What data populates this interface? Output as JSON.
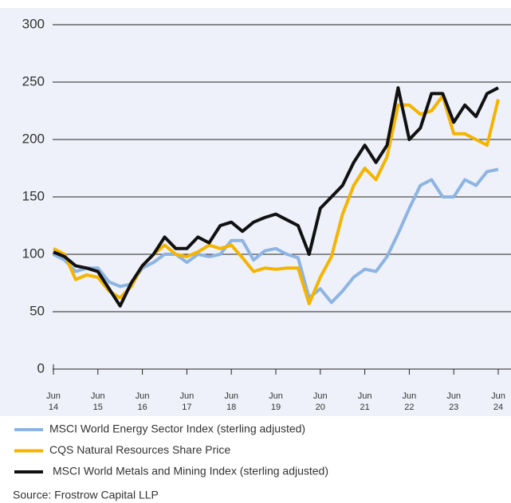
{
  "chart_data": {
    "type": "line",
    "x": [
      2014.5,
      2014.75,
      2015.0,
      2015.25,
      2015.5,
      2015.75,
      2016.0,
      2016.25,
      2016.5,
      2016.75,
      2017.0,
      2017.25,
      2017.5,
      2017.75,
      2018.0,
      2018.25,
      2018.5,
      2018.75,
      2019.0,
      2019.25,
      2019.5,
      2019.75,
      2020.0,
      2020.25,
      2020.5,
      2020.75,
      2021.0,
      2021.25,
      2021.5,
      2021.75,
      2022.0,
      2022.25,
      2022.5,
      2022.75,
      2023.0,
      2023.25,
      2023.5,
      2023.75,
      2024.0,
      2024.25,
      2024.5
    ],
    "series": [
      {
        "name": "MSCI World Energy Sector Index (sterling adjusted)",
        "color": "#8db4e2",
        "values": [
          100,
          95,
          85,
          88,
          88,
          76,
          72,
          74,
          88,
          93,
          100,
          100,
          93,
          100,
          98,
          100,
          112,
          112,
          95,
          103,
          105,
          100,
          97,
          62,
          70,
          58,
          68,
          80,
          87,
          85,
          98,
          118,
          140,
          160,
          165,
          150,
          150,
          165,
          160,
          172,
          174
        ]
      },
      {
        "name": "CQS Natural Resources Share Price",
        "color": "#f5b400",
        "values": [
          105,
          100,
          78,
          82,
          80,
          68,
          62,
          72,
          90,
          100,
          108,
          100,
          98,
          102,
          108,
          105,
          108,
          97,
          85,
          88,
          87,
          88,
          88,
          57,
          80,
          98,
          135,
          160,
          175,
          165,
          185,
          230,
          230,
          222,
          225,
          238,
          205,
          205,
          200,
          195,
          235
        ]
      },
      {
        "name": "MSCI World Metals and Mining Index (sterling adjusted)",
        "color": "#111111",
        "values": [
          102,
          98,
          90,
          88,
          85,
          70,
          55,
          75,
          90,
          100,
          115,
          105,
          105,
          115,
          110,
          125,
          128,
          120,
          128,
          132,
          135,
          130,
          125,
          100,
          140,
          150,
          160,
          180,
          195,
          180,
          195,
          245,
          200,
          210,
          240,
          240,
          215,
          230,
          220,
          240,
          245
        ]
      }
    ],
    "xlim": [
      2014.5,
      2024.5
    ],
    "xticks": [
      {
        "value": 2014.5,
        "label": "Jun 14"
      },
      {
        "value": 2015.5,
        "label": "Jun 15"
      },
      {
        "value": 2016.5,
        "label": "Jun 16"
      },
      {
        "value": 2017.5,
        "label": "Jun 17"
      },
      {
        "value": 2018.5,
        "label": "Jun 18"
      },
      {
        "value": 2019.5,
        "label": "Jun 19"
      },
      {
        "value": 2020.5,
        "label": "Jun 20"
      },
      {
        "value": 2021.5,
        "label": "Jun 21"
      },
      {
        "value": 2022.5,
        "label": "Jun 22"
      },
      {
        "value": 2023.5,
        "label": "Jun 23"
      },
      {
        "value": 2024.5,
        "label": "Jun 24"
      }
    ],
    "ylim": [
      0,
      300
    ],
    "yticks": [
      0,
      50,
      100,
      150,
      200,
      250,
      300
    ],
    "grid": true,
    "source": "Source: Frostrow Capital LLP"
  }
}
